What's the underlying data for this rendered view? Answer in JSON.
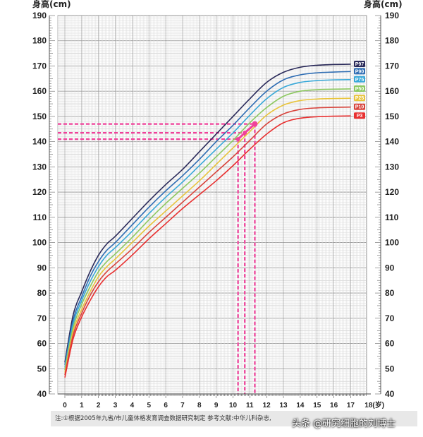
{
  "chart_data": {
    "type": "line",
    "ylabel": "身高(cm)",
    "xunit": "18(岁)",
    "ylim": [
      40,
      190
    ],
    "yticks": [
      40,
      50,
      60,
      70,
      80,
      90,
      100,
      110,
      120,
      130,
      140,
      150,
      160,
      170,
      180,
      190
    ],
    "xlim": [
      0,
      18
    ],
    "xticks": [
      "0",
      "1",
      "2",
      "3",
      "4",
      "5",
      "6",
      "7",
      "8",
      "9",
      "10",
      "11",
      "12",
      "13",
      "14",
      "15",
      "16",
      "17"
    ],
    "x": [
      0,
      0.5,
      1,
      1.5,
      2,
      2.5,
      3,
      4,
      5,
      6,
      7,
      8,
      9,
      10,
      11,
      12,
      13,
      14,
      15,
      16,
      17,
      18
    ],
    "series": [
      {
        "name": "P97",
        "color": "#2a2a5a",
        "values": [
          52.5,
          71.5,
          80.5,
          88.5,
          95,
          99.5,
          102.5,
          109.5,
          116.5,
          123,
          129,
          136,
          143,
          150,
          157,
          163.5,
          167.5,
          169.5,
          170.3,
          170.6,
          170.7,
          170.7
        ]
      },
      {
        "name": "P90",
        "color": "#2f6db3",
        "values": [
          51.5,
          69.5,
          78.5,
          86.5,
          92.5,
          97,
          100,
          107,
          114,
          120.5,
          126.5,
          133,
          140,
          146.5,
          153.5,
          160,
          164.5,
          166.5,
          167.3,
          167.6,
          167.8,
          167.8
        ]
      },
      {
        "name": "P75",
        "color": "#38a8d8",
        "values": [
          50.5,
          68,
          77,
          84.5,
          90.5,
          95,
          98,
          104.5,
          111.5,
          118,
          124,
          130.5,
          137,
          143.5,
          150.5,
          157,
          161.5,
          163.5,
          164.2,
          164.5,
          164.6,
          164.6
        ]
      },
      {
        "name": "P50",
        "color": "#8cc860",
        "values": [
          49.5,
          66.5,
          75.5,
          82.5,
          88.5,
          92.5,
          95.5,
          102,
          109,
          115.5,
          121.5,
          127.5,
          134,
          140.5,
          147.5,
          153.5,
          158,
          160,
          160.6,
          160.8,
          160.9,
          160.9
        ]
      },
      {
        "name": "P25",
        "color": "#e8c43c",
        "values": [
          48.5,
          65,
          73.5,
          80.5,
          86.5,
          90.5,
          93.5,
          100,
          106.5,
          112.5,
          118.5,
          124.5,
          131,
          137.5,
          144,
          150.5,
          154.5,
          156.3,
          156.9,
          157.1,
          157.2,
          157.2
        ]
      },
      {
        "name": "P10",
        "color": "#d8443c",
        "values": [
          47.5,
          63.5,
          72,
          79,
          84.5,
          88.5,
          91.5,
          97.5,
          104,
          110,
          116,
          122,
          128,
          134,
          140.5,
          147,
          151,
          152.8,
          153.4,
          153.6,
          153.7,
          153.7
        ]
      },
      {
        "name": "P3",
        "color": "#e83030",
        "values": [
          46.5,
          62,
          70.5,
          77,
          82.5,
          86.5,
          89,
          95,
          101.5,
          107.5,
          113.5,
          119,
          124.5,
          130.5,
          137,
          143,
          147.5,
          149.3,
          149.9,
          150.1,
          150.2,
          150.2
        ]
      }
    ],
    "annotations": {
      "color": "#f0409a",
      "h_lines": [
        147,
        143.5,
        141
      ],
      "v_lines": [
        10.3,
        10.7,
        11.3
      ],
      "points": [
        {
          "x": 10.3,
          "y": 141
        },
        {
          "x": 10.7,
          "y": 143.5
        },
        {
          "x": 11.3,
          "y": 147
        }
      ]
    }
  },
  "footer": {
    "note": "注:①根据2005年九省/市儿童体格发育调查数据研究制定  参考文献:中华儿科杂志,"
  },
  "watermark": "头条 @研究细胞的刘博士"
}
